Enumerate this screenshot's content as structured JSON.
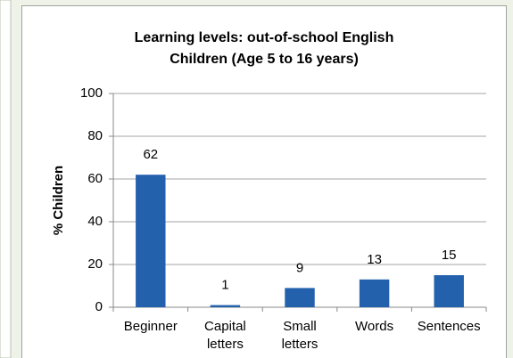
{
  "chart_data": {
    "type": "bar",
    "title": [
      "Learning levels: out-of-school English",
      "Children (Age 5 to 16 years)"
    ],
    "y_label": "% Children",
    "categories": [
      "Beginner",
      "Capital letters",
      "Small letters",
      "Words",
      "Sentences"
    ],
    "values": [
      62,
      1,
      9,
      13,
      15
    ],
    "color": "#2361ad",
    "ylim": [
      0,
      100
    ],
    "yticks": [
      0,
      20,
      40,
      60,
      80,
      100
    ],
    "grid": true
  }
}
